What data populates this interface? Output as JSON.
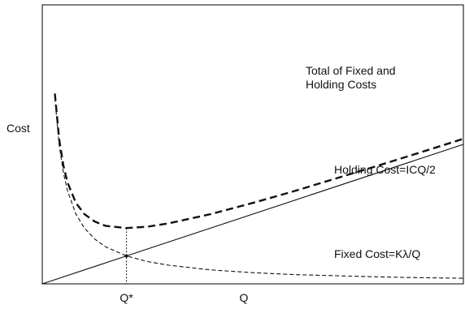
{
  "chart_data": {
    "type": "line",
    "ylabel": "Cost",
    "xlabel": "Q",
    "x_tick_labels": [
      "Q*"
    ],
    "xlim": [
      0,
      10
    ],
    "ylim": [
      0,
      10
    ],
    "grid": false,
    "params": {
      "K_lambda": 2.0,
      "IC_half": 0.5
    },
    "optimum": {
      "x": 2.0,
      "y_total": 2.0,
      "y_fixed": 1.0
    },
    "series": [
      {
        "key": "total",
        "name": "Total of Fixed and Holding Costs",
        "label_lines": [
          "Total of Fixed and",
          "Holding Costs"
        ],
        "style": "dashed-bold",
        "x": [
          0.3,
          0.4,
          0.5,
          0.6,
          0.8,
          1.0,
          1.25,
          1.5,
          2.0,
          2.5,
          3.0,
          4.0,
          5.0,
          6.0,
          7.0,
          8.0,
          9.0,
          10.0
        ],
        "y": [
          6.82,
          5.2,
          4.25,
          3.63,
          2.9,
          2.5,
          2.23,
          2.08,
          2.0,
          2.05,
          2.17,
          2.5,
          2.9,
          3.33,
          3.79,
          4.25,
          4.72,
          5.2
        ]
      },
      {
        "key": "holding",
        "name": "Holding Cost=ICQ/2",
        "label_lines": [
          "Holding Cost=ICQ/2"
        ],
        "style": "solid",
        "x": [
          0,
          10
        ],
        "y": [
          0,
          5
        ]
      },
      {
        "key": "fixed",
        "name": "Fixed Cost=Kλ/Q",
        "label_lines": [
          "Fixed Cost=Kλ/Q"
        ],
        "style": "dashed-thin",
        "x": [
          0.3,
          0.4,
          0.5,
          0.6,
          0.8,
          1.0,
          1.25,
          1.5,
          2.0,
          2.5,
          3.0,
          4.0,
          5.0,
          6.0,
          7.0,
          8.0,
          9.0,
          10.0
        ],
        "y": [
          6.67,
          5.0,
          4.0,
          3.33,
          2.5,
          2.0,
          1.6,
          1.33,
          1.0,
          0.8,
          0.67,
          0.5,
          0.4,
          0.33,
          0.29,
          0.25,
          0.22,
          0.2
        ]
      }
    ]
  }
}
